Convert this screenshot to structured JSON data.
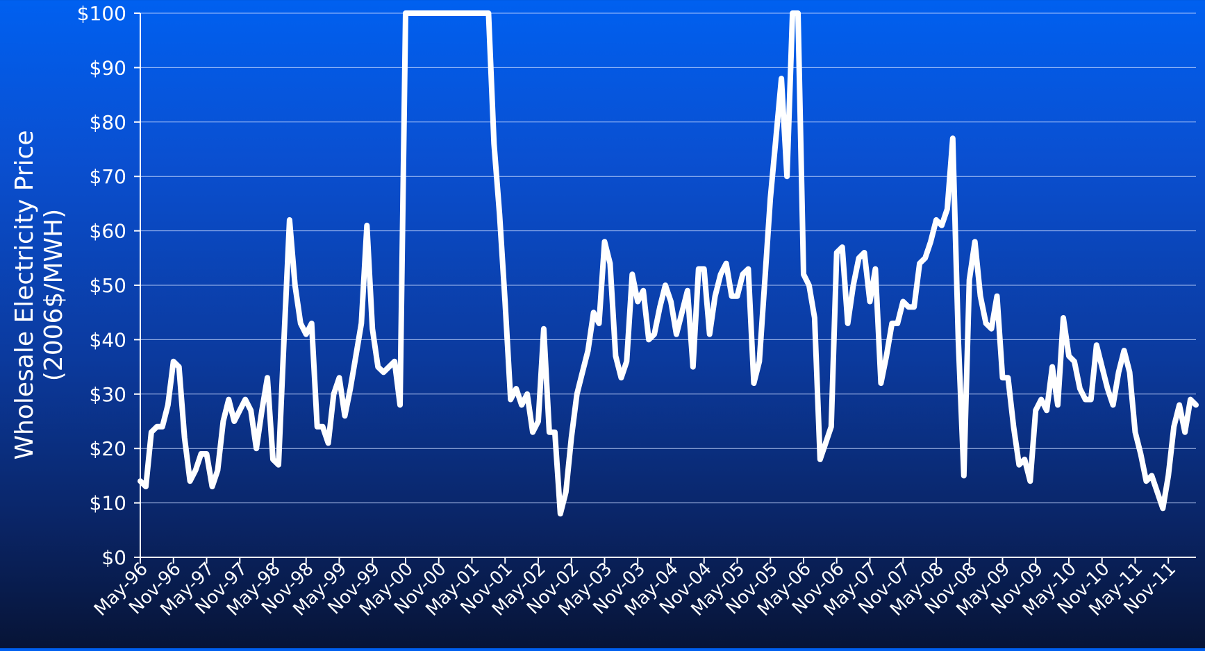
{
  "chart_data": {
    "type": "line",
    "ylabel_line1": "Wholesale Electricity Price",
    "ylabel_line2": "(2006$/MWH)",
    "ylim": [
      0,
      100
    ],
    "y_ticks": [
      0,
      10,
      20,
      30,
      40,
      50,
      60,
      70,
      80,
      90,
      100
    ],
    "y_tick_labels": [
      "$0",
      "$10",
      "$20",
      "$30",
      "$40",
      "$50",
      "$60",
      "$70",
      "$80",
      "$90",
      "$100"
    ],
    "x_tick_labels": [
      "May-96",
      "Nov-96",
      "May-97",
      "Nov-97",
      "May-98",
      "Nov-98",
      "May-99",
      "Nov-99",
      "May-00",
      "Nov-00",
      "May-01",
      "Nov-01",
      "May-02",
      "Nov-02",
      "May-03",
      "Nov-03",
      "May-04",
      "Nov-04",
      "May-05",
      "Nov-05",
      "May-06",
      "Nov-06",
      "May-07",
      "Nov-07",
      "May-08",
      "Nov-08",
      "May-09",
      "Nov-09",
      "May-10",
      "Nov-10",
      "May-11",
      "Nov-11"
    ],
    "grid": true,
    "series_color": "#ffffff",
    "values": [
      14,
      13,
      23,
      24,
      24,
      28,
      36,
      35,
      22,
      14,
      16,
      19,
      19,
      13,
      16,
      25,
      29,
      25,
      27,
      29,
      27,
      20,
      27,
      33,
      18,
      17,
      40,
      62,
      50,
      43,
      41,
      43,
      24,
      24,
      21,
      30,
      33,
      26,
      31,
      37,
      43,
      61,
      42,
      35,
      34,
      35,
      36,
      28,
      100,
      100,
      100,
      100,
      100,
      100,
      100,
      100,
      100,
      100,
      100,
      100,
      100,
      100,
      100,
      100,
      76,
      63,
      47,
      29,
      31,
      28,
      30,
      23,
      25,
      42,
      23,
      23,
      8,
      12,
      22,
      30,
      34,
      38,
      45,
      43,
      58,
      54,
      37,
      33,
      36,
      52,
      47,
      49,
      40,
      41,
      46,
      50,
      47,
      41,
      45,
      49,
      35,
      53,
      53,
      41,
      48,
      52,
      54,
      48,
      48,
      52,
      53,
      32,
      36,
      51,
      66,
      77,
      88,
      70,
      100,
      100,
      52,
      50,
      44,
      18,
      21,
      24,
      56,
      57,
      43,
      50,
      55,
      56,
      47,
      53,
      32,
      37,
      43,
      43,
      47,
      46,
      46,
      54,
      55,
      58,
      62,
      61,
      64,
      77,
      40,
      15,
      51,
      58,
      48,
      43,
      42,
      48,
      33,
      33,
      24,
      17,
      18,
      14,
      27,
      29,
      27,
      35,
      28,
      44,
      37,
      36,
      31,
      29,
      29,
      39,
      35,
      31,
      28,
      34,
      38,
      34,
      23,
      19,
      14,
      15,
      12,
      9,
      15,
      24,
      28,
      23,
      29,
      28
    ]
  }
}
